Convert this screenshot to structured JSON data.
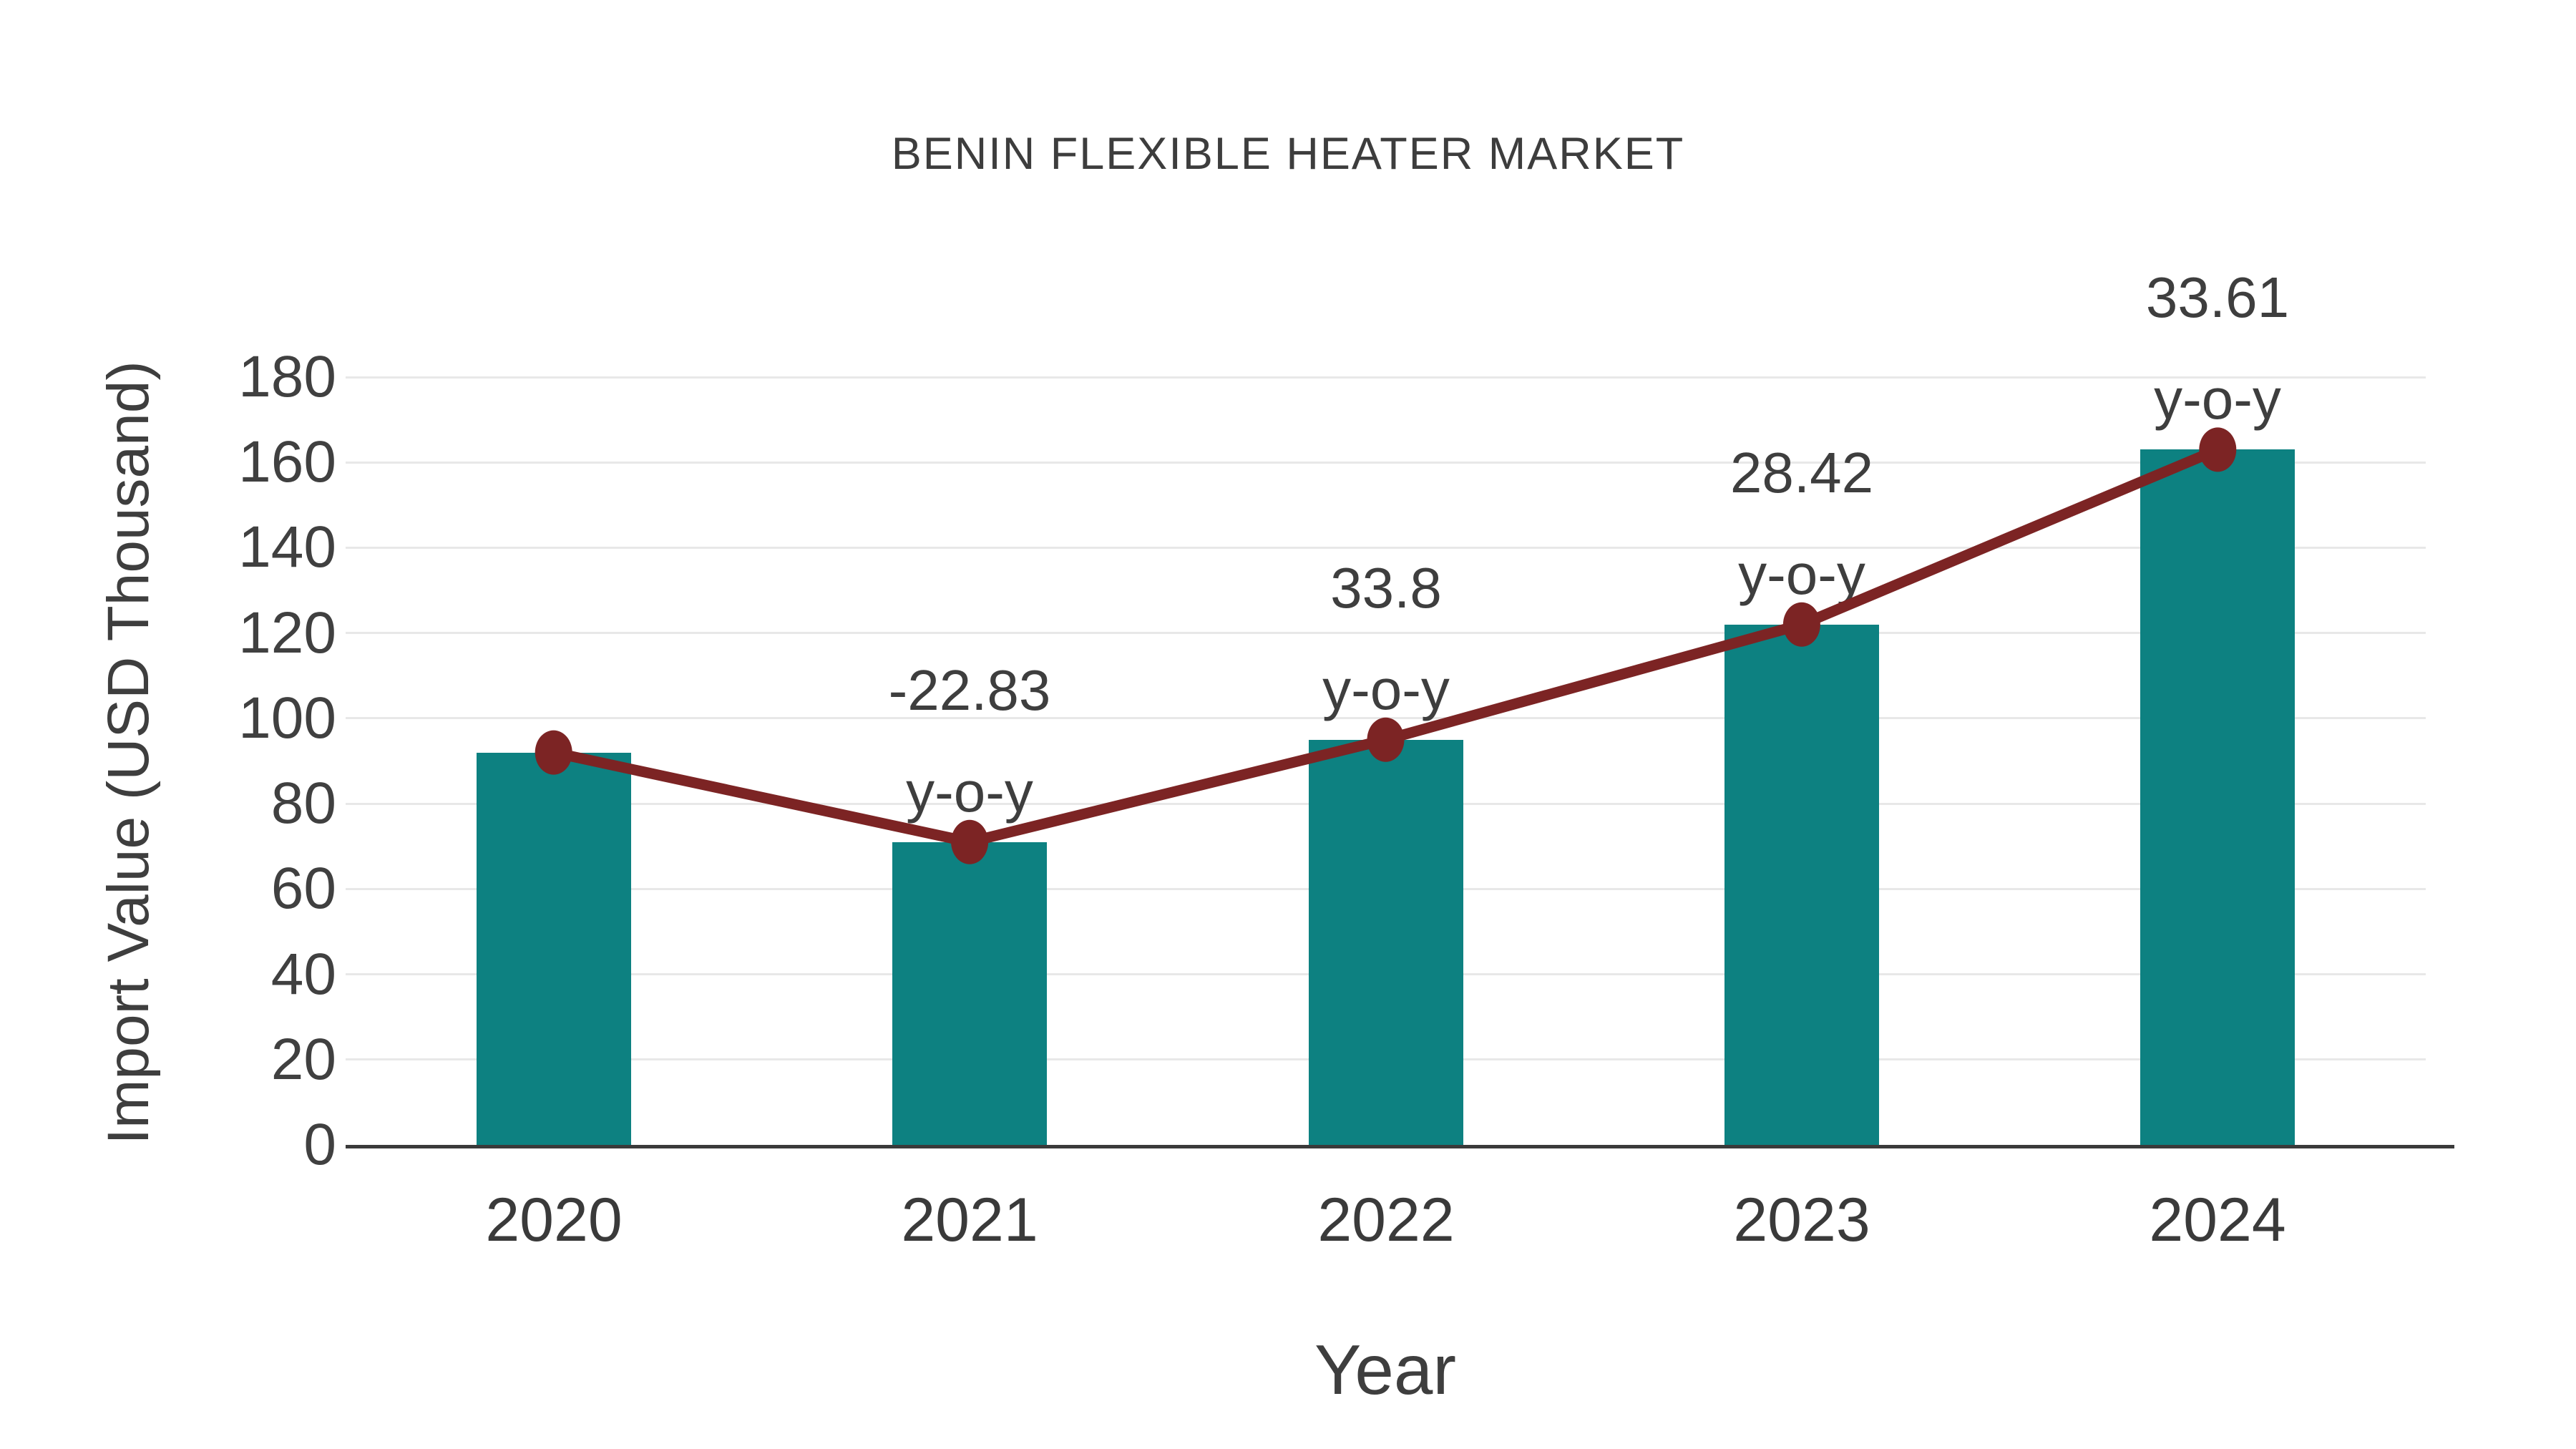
{
  "page": {
    "background": "#ffffff"
  },
  "chart_data": {
    "type": "bar",
    "title": "BENIN FLEXIBLE HEATER MARKET",
    "xlabel": "Year",
    "ylabel": "Import Value (USD Thousand)",
    "categories": [
      "2020",
      "2021",
      "2022",
      "2023",
      "2024"
    ],
    "series": [
      {
        "name": "Import Value (USD Thousand)",
        "type": "bar",
        "values": [
          92,
          71,
          95,
          122,
          163
        ],
        "color": "#0d8181"
      },
      {
        "name": "Year-over-year trend line",
        "type": "line",
        "values": [
          92,
          71,
          95,
          122,
          163
        ],
        "color": "#7c2424"
      }
    ],
    "annotations": [
      {
        "category": "2021",
        "value_label": "-22.83",
        "suffix_label": "y-o-y"
      },
      {
        "category": "2022",
        "value_label": "33.8",
        "suffix_label": "y-o-y"
      },
      {
        "category": "2023",
        "value_label": "28.42",
        "suffix_label": "y-o-y"
      },
      {
        "category": "2024",
        "value_label": "33.61",
        "suffix_label": "y-o-y"
      }
    ],
    "yticks": [
      0,
      20,
      40,
      60,
      80,
      100,
      120,
      140,
      160,
      180
    ],
    "ylim": [
      0,
      183
    ],
    "grid": true,
    "legend_position": "none",
    "colors": {
      "bar": "#0d8181",
      "line": "#7c2424",
      "marker": "#7c2424",
      "text": "#3e3e3e",
      "gridline": "#e8e8e8",
      "axis": "#3a3a3a"
    }
  }
}
